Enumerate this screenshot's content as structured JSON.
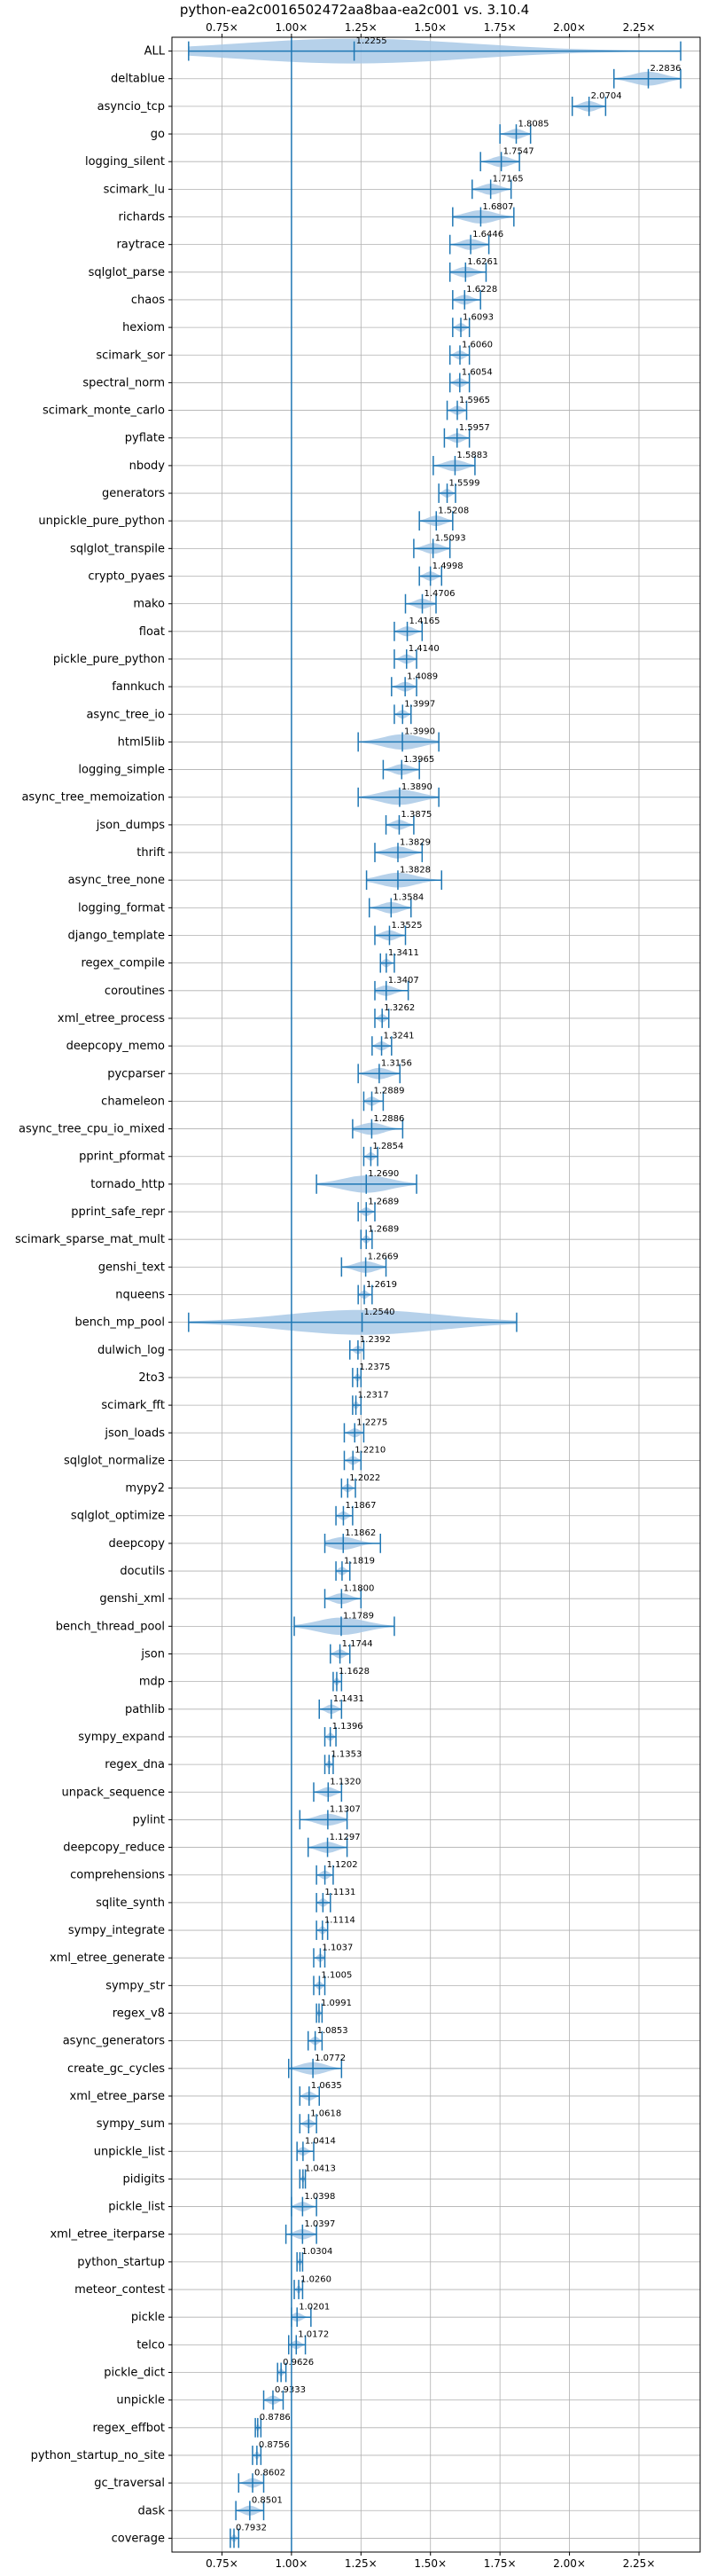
{
  "chart_data": {
    "type": "violin",
    "title": "python-ea2c0016502472aa8baa-ea2c001 vs. 3.10.4",
    "xlabel": "",
    "ylabel": "",
    "x_tick_labels": [
      "0.75×",
      "1.00×",
      "1.25×",
      "1.50×",
      "1.75×",
      "2.00×",
      "2.25×"
    ],
    "x_ticks": [
      0.75,
      1.0,
      1.25,
      1.5,
      1.75,
      2.0,
      2.25
    ],
    "xlim": [
      0.57,
      2.47
    ],
    "reference_line": 1.0,
    "grid": true,
    "colors": {
      "violin": "#a9c9e6",
      "line": "#1f77b4"
    },
    "categories": [
      "ALL",
      "deltablue",
      "asyncio_tcp",
      "go",
      "logging_silent",
      "scimark_lu",
      "richards",
      "raytrace",
      "sqlglot_parse",
      "chaos",
      "hexiom",
      "scimark_sor",
      "spectral_norm",
      "scimark_monte_carlo",
      "pyflate",
      "nbody",
      "generators",
      "unpickle_pure_python",
      "sqlglot_transpile",
      "crypto_pyaes",
      "mako",
      "float",
      "pickle_pure_python",
      "fannkuch",
      "async_tree_io",
      "html5lib",
      "logging_simple",
      "async_tree_memoization",
      "json_dumps",
      "thrift",
      "async_tree_none",
      "logging_format",
      "django_template",
      "regex_compile",
      "coroutines",
      "xml_etree_process",
      "deepcopy_memo",
      "pycparser",
      "chameleon",
      "async_tree_cpu_io_mixed",
      "pprint_pformat",
      "tornado_http",
      "pprint_safe_repr",
      "scimark_sparse_mat_mult",
      "genshi_text",
      "nqueens",
      "bench_mp_pool",
      "dulwich_log",
      "2to3",
      "scimark_fft",
      "json_loads",
      "sqlglot_normalize",
      "mypy2",
      "sqlglot_optimize",
      "deepcopy",
      "docutils",
      "genshi_xml",
      "bench_thread_pool",
      "json",
      "mdp",
      "pathlib",
      "sympy_expand",
      "regex_dna",
      "unpack_sequence",
      "pylint",
      "deepcopy_reduce",
      "comprehensions",
      "sqlite_synth",
      "sympy_integrate",
      "xml_etree_generate",
      "sympy_str",
      "regex_v8",
      "async_generators",
      "create_gc_cycles",
      "xml_etree_parse",
      "sympy_sum",
      "unpickle_list",
      "pidigits",
      "pickle_list",
      "xml_etree_iterparse",
      "python_startup",
      "meteor_contest",
      "pickle",
      "telco",
      "pickle_dict",
      "unpickle",
      "regex_effbot",
      "python_startup_no_site",
      "gc_traversal",
      "dask",
      "coverage"
    ],
    "values": [
      1.2255,
      2.2836,
      2.0704,
      1.8085,
      1.7547,
      1.7165,
      1.6807,
      1.6446,
      1.6261,
      1.6228,
      1.6093,
      1.606,
      1.6054,
      1.5965,
      1.5957,
      1.5883,
      1.5599,
      1.5208,
      1.5093,
      1.4998,
      1.4706,
      1.4165,
      1.414,
      1.4089,
      1.3997,
      1.399,
      1.3965,
      1.389,
      1.3875,
      1.3829,
      1.3828,
      1.3584,
      1.3525,
      1.3411,
      1.3407,
      1.3262,
      1.3241,
      1.3156,
      1.2889,
      1.2886,
      1.2854,
      1.269,
      1.2689,
      1.2689,
      1.2669,
      1.2619,
      1.254,
      1.2392,
      1.2375,
      1.2317,
      1.2275,
      1.221,
      1.2022,
      1.1867,
      1.1862,
      1.1819,
      1.18,
      1.1789,
      1.1744,
      1.1628,
      1.1431,
      1.1396,
      1.1353,
      1.132,
      1.1307,
      1.1297,
      1.1202,
      1.1131,
      1.1114,
      1.1037,
      1.1005,
      1.0991,
      1.0853,
      1.0772,
      1.0635,
      1.0618,
      1.0414,
      1.0413,
      1.0398,
      1.0397,
      1.0304,
      1.026,
      1.0201,
      1.0172,
      0.9626,
      0.9333,
      0.8786,
      0.8756,
      0.8602,
      0.8501,
      0.7932
    ],
    "min": [
      0.63,
      2.16,
      2.01,
      1.75,
      1.68,
      1.65,
      1.58,
      1.57,
      1.57,
      1.58,
      1.58,
      1.57,
      1.57,
      1.56,
      1.55,
      1.51,
      1.53,
      1.46,
      1.44,
      1.46,
      1.41,
      1.37,
      1.37,
      1.36,
      1.37,
      1.24,
      1.33,
      1.24,
      1.34,
      1.3,
      1.27,
      1.28,
      1.3,
      1.32,
      1.3,
      1.3,
      1.29,
      1.24,
      1.26,
      1.22,
      1.26,
      1.09,
      1.24,
      1.25,
      1.18,
      1.24,
      0.63,
      1.21,
      1.22,
      1.22,
      1.19,
      1.19,
      1.18,
      1.16,
      1.12,
      1.16,
      1.12,
      1.01,
      1.14,
      1.15,
      1.1,
      1.12,
      1.12,
      1.08,
      1.03,
      1.06,
      1.09,
      1.09,
      1.09,
      1.08,
      1.08,
      1.09,
      1.06,
      0.99,
      1.03,
      1.03,
      1.02,
      1.03,
      1.0,
      0.98,
      1.02,
      1.01,
      1.0,
      0.99,
      0.95,
      0.9,
      0.87,
      0.86,
      0.81,
      0.8,
      0.78
    ],
    "max": [
      2.4,
      2.4,
      2.13,
      1.86,
      1.82,
      1.79,
      1.8,
      1.71,
      1.7,
      1.68,
      1.64,
      1.64,
      1.64,
      1.63,
      1.64,
      1.66,
      1.59,
      1.58,
      1.57,
      1.54,
      1.52,
      1.47,
      1.45,
      1.45,
      1.43,
      1.53,
      1.46,
      1.53,
      1.44,
      1.47,
      1.54,
      1.43,
      1.41,
      1.37,
      1.42,
      1.35,
      1.36,
      1.39,
      1.33,
      1.4,
      1.31,
      1.45,
      1.3,
      1.29,
      1.34,
      1.29,
      1.81,
      1.26,
      1.25,
      1.25,
      1.26,
      1.25,
      1.23,
      1.22,
      1.32,
      1.21,
      1.25,
      1.37,
      1.21,
      1.18,
      1.18,
      1.16,
      1.15,
      1.18,
      1.2,
      1.2,
      1.15,
      1.14,
      1.13,
      1.12,
      1.12,
      1.11,
      1.11,
      1.18,
      1.1,
      1.09,
      1.08,
      1.05,
      1.09,
      1.09,
      1.04,
      1.04,
      1.07,
      1.05,
      0.98,
      0.97,
      0.89,
      0.89,
      0.9,
      0.9,
      0.81
    ]
  }
}
